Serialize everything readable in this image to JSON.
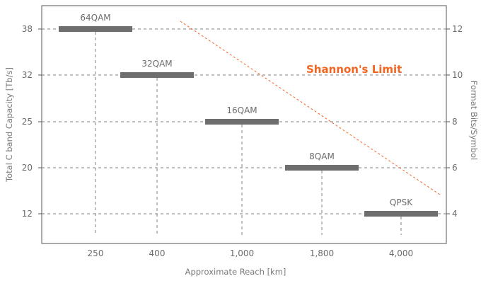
{
  "chart_data": {
    "type": "bar",
    "subtype": "horizontal-range-bars",
    "title": "",
    "xlabel": "Approximate Reach [km]",
    "ylabel_left": "Total C band Capacity [Tb/s]",
    "ylabel_right": "Format Bits/Symbol",
    "x_ticks": [
      "250",
      "400",
      "1,000",
      "1,800",
      "4,000"
    ],
    "y_left_ticks": [
      "38",
      "32",
      "25",
      "20",
      "12"
    ],
    "y_right_ticks": [
      "12",
      "10",
      "8",
      "6",
      "4"
    ],
    "grid": true,
    "grid_style": "dashed",
    "series": [
      {
        "label": "64QAM",
        "bits_per_symbol": 12,
        "capacity_tbps": 38,
        "reach_km": 250
      },
      {
        "label": "32QAM",
        "bits_per_symbol": 10,
        "capacity_tbps": 32,
        "reach_km": 400
      },
      {
        "label": "16QAM",
        "bits_per_symbol": 8,
        "capacity_tbps": 25,
        "reach_km": 1000
      },
      {
        "label": "8QAM",
        "bits_per_symbol": 6,
        "capacity_tbps": 20,
        "reach_km": 1800
      },
      {
        "label": "QPSK",
        "bits_per_symbol": 4,
        "capacity_tbps": 12,
        "reach_km": 4000
      }
    ],
    "annotation": {
      "text": "Shannon's Limit",
      "color": "#f26522"
    },
    "colors": {
      "bar": "#6e6e6e",
      "grid": "#7f7f7f",
      "shannon": "#f26522",
      "text": "#6b6b6b"
    }
  }
}
